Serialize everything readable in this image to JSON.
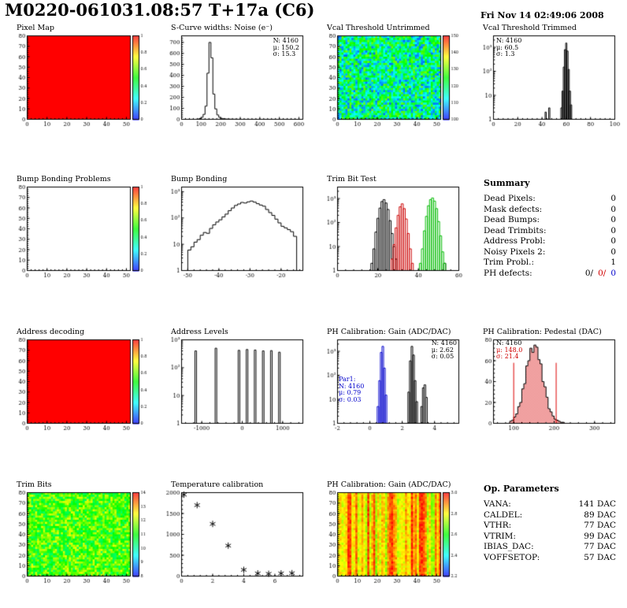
{
  "header": {
    "title": "M0220-061031.08:57 T+17a (C6)",
    "date": "Fri Nov 14 02:49:06 2008"
  },
  "summary": {
    "title": "Summary",
    "rows": [
      {
        "label": "Dead Pixels:",
        "value": "0"
      },
      {
        "label": "Mask defects:",
        "value": "0"
      },
      {
        "label": "Dead Bumps:",
        "value": "0"
      },
      {
        "label": "Dead Trimbits:",
        "value": "0"
      },
      {
        "label": "Address Probl:",
        "value": "0"
      },
      {
        "label": "Noisy Pixels 2:",
        "value": "0"
      },
      {
        "label": "Trim Probl.:",
        "value": "1"
      }
    ],
    "ph_defects": {
      "label": "PH defects:",
      "v1": "0/",
      "v2": "0/",
      "v3": "0"
    }
  },
  "op_params": {
    "title": "Op. Parameters",
    "rows": [
      {
        "label": "VANA:",
        "value": "141 DAC"
      },
      {
        "label": "CALDEL:",
        "value": "89 DAC"
      },
      {
        "label": "VTHR:",
        "value": "77 DAC"
      },
      {
        "label": "VTRIM:",
        "value": "99 DAC"
      },
      {
        "label": "IBIAS_DAC:",
        "value": "77 DAC"
      },
      {
        "label": "VOFFSETOP:",
        "value": "57 DAC"
      }
    ]
  },
  "chart_data": [
    {
      "type": "heatmap",
      "mode": "uniform",
      "value": 1,
      "title": "Pixel Map",
      "xlim": [
        0,
        52
      ],
      "xticks": [
        0,
        10,
        20,
        30,
        40,
        50
      ],
      "ylim": [
        0,
        80
      ],
      "yticks": [
        0,
        10,
        20,
        30,
        40,
        50,
        60,
        70,
        80
      ],
      "nx": 52,
      "ny": 40,
      "colorbar": true,
      "zticks": [
        "0",
        "0.2",
        "0.4",
        "0.6",
        "0.8",
        "1"
      ]
    },
    {
      "type": "hist",
      "title": "S-Curve widths: Noise (e⁻)",
      "xlim": [
        0,
        620
      ],
      "xticks": [
        0,
        100,
        200,
        300,
        400,
        500,
        600
      ],
      "ylim": [
        0,
        760
      ],
      "yticks": [
        0,
        100,
        200,
        300,
        400,
        500,
        600,
        700
      ],
      "series": [
        {
          "color": "#000000",
          "x0": 0,
          "dx": 10,
          "values": [
            0,
            0,
            0,
            0,
            0,
            0,
            0,
            0,
            2,
            8,
            18,
            45,
            120,
            420,
            700,
            560,
            230,
            95,
            40,
            18,
            9,
            5,
            3,
            2,
            2,
            1,
            1,
            1,
            1,
            0,
            0,
            0,
            0,
            0,
            0,
            0,
            0,
            0,
            0,
            0,
            0,
            0,
            0,
            0,
            0,
            0,
            0,
            0,
            0,
            0,
            0,
            0,
            0,
            0,
            0,
            0,
            0,
            0,
            0,
            0
          ]
        }
      ],
      "stats": [
        "N: 4160",
        "μ: 150.2",
        "σ: 15.3"
      ]
    },
    {
      "type": "heatmap",
      "mode": "noise",
      "base": 0.36,
      "amp": 0.26,
      "seed": 7,
      "title": "Vcal Threshold Untrimmed",
      "xlim": [
        0,
        52
      ],
      "xticks": [
        0,
        10,
        20,
        30,
        40,
        50
      ],
      "ylim": [
        0,
        80
      ],
      "yticks": [
        0,
        10,
        20,
        30,
        40,
        50,
        60,
        70,
        80
      ],
      "nx": 52,
      "ny": 40,
      "colorbar": true,
      "zticks": [
        "100",
        "110",
        "120",
        "130",
        "140",
        "150"
      ]
    },
    {
      "type": "hist",
      "ylog": true,
      "title": "Vcal Threshold Trimmed",
      "xlim": [
        0,
        100
      ],
      "xticks": [
        0,
        20,
        40,
        60,
        80,
        100
      ],
      "ymin": 1,
      "ymax": 3000,
      "series": [
        {
          "color": "#000000",
          "dx": 1,
          "spikes": [
            [
              43,
              2
            ],
            [
              46,
              3
            ],
            [
              56,
              3
            ],
            [
              57,
              15
            ],
            [
              58,
              150
            ],
            [
              59,
              800
            ],
            [
              60,
              1500
            ],
            [
              61,
              700
            ],
            [
              62,
              120
            ],
            [
              63,
              15
            ],
            [
              64,
              4
            ]
          ]
        }
      ],
      "stats": [
        "N: 4160",
        "μ: 60.5",
        "σ: 1.3"
      ]
    },
    {
      "type": "heatmap",
      "mode": "empty",
      "title": "Bump Bonding Problems",
      "xlim": [
        0,
        52
      ],
      "xticks": [
        0,
        10,
        20,
        30,
        40,
        50
      ],
      "ylim": [
        0,
        80
      ],
      "yticks": [
        0,
        10,
        20,
        30,
        40,
        50,
        60,
        70,
        80
      ],
      "colorbar": true,
      "zticks": [
        "0",
        "0.2",
        "0.4",
        "0.6",
        "0.8",
        "1"
      ]
    },
    {
      "type": "hist",
      "ylog": true,
      "title": "Bump Bonding",
      "xlim": [
        -52,
        -13
      ],
      "xticks": [
        -50,
        -40,
        -30,
        -20
      ],
      "ymin": 1,
      "ymax": 1500,
      "series": [
        {
          "color": "#000000",
          "x0": -50,
          "dx": 1,
          "values": [
            6,
            8,
            12,
            15,
            22,
            28,
            26,
            40,
            55,
            70,
            85,
            110,
            140,
            190,
            240,
            300,
            340,
            390,
            370,
            410,
            440,
            400,
            350,
            310,
            280,
            210,
            160,
            125,
            90,
            65,
            48,
            42,
            36,
            30,
            20,
            1
          ]
        }
      ]
    },
    {
      "type": "hist",
      "ylog": true,
      "title": "Trim Bit Test",
      "xlim": [
        0,
        60
      ],
      "xticks": [
        0,
        20,
        40,
        60
      ],
      "ymin": 1,
      "ymax": 3000,
      "series": [
        {
          "color": "#000000",
          "dx": 1,
          "spikes": [
            [
              17,
              2
            ],
            [
              18,
              8
            ],
            [
              19,
              40
            ],
            [
              20,
              150
            ],
            [
              21,
              400
            ],
            [
              22,
              750
            ],
            [
              23,
              900
            ],
            [
              24,
              650
            ],
            [
              25,
              350
            ],
            [
              26,
              120
            ],
            [
              27,
              35
            ],
            [
              28,
              10
            ],
            [
              29,
              3
            ],
            [
              53,
              2
            ]
          ]
        },
        {
          "color": "#cc0000",
          "dx": 1,
          "spikes": [
            [
              27,
              3
            ],
            [
              28,
              12
            ],
            [
              29,
              60
            ],
            [
              30,
              200
            ],
            [
              31,
              450
            ],
            [
              32,
              600
            ],
            [
              33,
              380
            ],
            [
              34,
              140
            ],
            [
              35,
              35
            ],
            [
              36,
              8
            ],
            [
              37,
              2
            ]
          ]
        },
        {
          "color": "#00bb00",
          "dx": 1,
          "spikes": [
            [
              41,
              2
            ],
            [
              42,
              8
            ],
            [
              43,
              45
            ],
            [
              44,
              180
            ],
            [
              45,
              500
            ],
            [
              46,
              900
            ],
            [
              47,
              1050
            ],
            [
              48,
              780
            ],
            [
              49,
              380
            ],
            [
              50,
              110
            ],
            [
              51,
              28
            ],
            [
              52,
              6
            ],
            [
              53,
              2
            ]
          ]
        }
      ]
    },
    {
      "type": "heatmap",
      "mode": "uniform",
      "value": 1,
      "title": "Address decoding",
      "xlim": [
        0,
        52
      ],
      "xticks": [
        0,
        10,
        20,
        30,
        40,
        50
      ],
      "ylim": [
        0,
        80
      ],
      "yticks": [
        0,
        10,
        20,
        30,
        40,
        50,
        60,
        70,
        80
      ],
      "nx": 52,
      "ny": 40,
      "colorbar": true,
      "zticks": [
        "0",
        "0.2",
        "0.4",
        "0.6",
        "0.8",
        "1"
      ]
    },
    {
      "type": "hist",
      "ylog": true,
      "title": "Address Levels",
      "xlim": [
        -1500,
        1500
      ],
      "xticks": [
        -1000,
        0,
        1000
      ],
      "ymin": 1,
      "ymax": 1000,
      "series": [
        {
          "color": "#000000",
          "dx": 40,
          "spikes": [
            [
              -1150,
              400
            ],
            [
              -650,
              500
            ],
            [
              -80,
              420
            ],
            [
              120,
              450
            ],
            [
              320,
              430
            ],
            [
              520,
              400
            ],
            [
              720,
              410
            ],
            [
              920,
              360
            ]
          ]
        }
      ]
    },
    {
      "type": "hist",
      "ylog": true,
      "title": "PH Calibration: Gain (ADC/DAC)",
      "xlim": [
        -2,
        5.5
      ],
      "xticks": [
        -2,
        0,
        2,
        4
      ],
      "ymin": 1,
      "ymax": 3000,
      "series": [
        {
          "color": "#0000cc",
          "dx": 0.1,
          "spikes": [
            [
              0.5,
              5
            ],
            [
              0.6,
              60
            ],
            [
              0.7,
              900
            ],
            [
              0.8,
              1600
            ],
            [
              0.9,
              200
            ],
            [
              1.0,
              15
            ]
          ]
        },
        {
          "color": "#000000",
          "dx": 0.1,
          "spikes": [
            [
              2.4,
              20
            ],
            [
              2.5,
              400
            ],
            [
              2.6,
              1600
            ],
            [
              2.7,
              700
            ],
            [
              2.8,
              60
            ],
            [
              2.9,
              8
            ],
            [
              3.2,
              5
            ],
            [
              3.3,
              30
            ],
            [
              3.4,
              40
            ],
            [
              3.5,
              12
            ]
          ]
        }
      ],
      "stats": [
        "N: 4160",
        "μ: 2.62",
        "σ: 0.05"
      ],
      "stats2_title": "Par1:",
      "stats2": [
        "N: 4160",
        "μ: 0.79",
        "σ: 0.03"
      ]
    },
    {
      "type": "hist",
      "title": "PH Calibration: Pedestal (DAC)",
      "xlim": [
        50,
        350
      ],
      "xticks": [
        100,
        200,
        300
      ],
      "ylim": [
        0,
        80
      ],
      "yticks": [
        0,
        20,
        40,
        60,
        80
      ],
      "series": [
        {
          "color": "#000000",
          "fill": "red-dots",
          "x0": 50,
          "dx": 5,
          "values": [
            0,
            0,
            0,
            0,
            0,
            0,
            0,
            0,
            2,
            3,
            6,
            9,
            16,
            20,
            33,
            38,
            55,
            60,
            72,
            68,
            75,
            73,
            61,
            57,
            40,
            35,
            25,
            14,
            11,
            7,
            4,
            3,
            2,
            1,
            1,
            0,
            0,
            0,
            0,
            0,
            0,
            0,
            0,
            0,
            0,
            0,
            0,
            0,
            0,
            0,
            0,
            0,
            0,
            0,
            0,
            0,
            0,
            0,
            0,
            0
          ]
        }
      ],
      "vlines": [
        {
          "x": 100,
          "y2": 58
        },
        {
          "x": 205,
          "y2": 58
        }
      ],
      "stats": [
        "N: 4160",
        "μ: 148.0",
        "σ: 21.4"
      ]
    },
    {
      "type": "heatmap",
      "mode": "noise",
      "base": 0.56,
      "amp": 0.17,
      "seed": 13,
      "title": "Trim Bits",
      "xlim": [
        0,
        52
      ],
      "xticks": [
        0,
        10,
        20,
        30,
        40,
        50
      ],
      "ylim": [
        0,
        80
      ],
      "yticks": [
        0,
        10,
        20,
        30,
        40,
        50,
        60,
        70,
        80
      ],
      "nx": 52,
      "ny": 40,
      "colorbar": true,
      "zticks": [
        "8",
        "9",
        "10",
        "11",
        "12",
        "13",
        "14"
      ]
    },
    {
      "type": "scatter",
      "title": "Temperature calibration",
      "marker": "asterisk",
      "xlim": [
        0,
        7.8
      ],
      "xticks": [
        0,
        2,
        4,
        6
      ],
      "ylim": [
        0,
        2000
      ],
      "yticks": [
        0,
        500,
        1000,
        1500,
        2000
      ],
      "points": [
        [
          0.15,
          1950
        ],
        [
          1,
          1700
        ],
        [
          2,
          1250
        ],
        [
          3,
          730
        ],
        [
          4,
          150
        ],
        [
          4.9,
          65
        ],
        [
          5.6,
          55
        ],
        [
          6.4,
          65
        ],
        [
          7.1,
          70
        ]
      ]
    },
    {
      "type": "heatmap",
      "mode": "stripes",
      "base": 0.62,
      "amp": 0.36,
      "seed": 21,
      "title": "PH Calibration: Gain (ADC/DAC)",
      "xlim": [
        0,
        52
      ],
      "xticks": [
        0,
        10,
        20,
        30,
        40,
        50
      ],
      "ylim": [
        0,
        80
      ],
      "yticks": [
        0,
        10,
        20,
        30,
        40,
        50,
        60,
        70,
        80
      ],
      "nx": 52,
      "ny": 40,
      "colorbar": true,
      "zticks": [
        "2.2",
        "2.4",
        "2.6",
        "2.8",
        "3.0"
      ]
    }
  ]
}
